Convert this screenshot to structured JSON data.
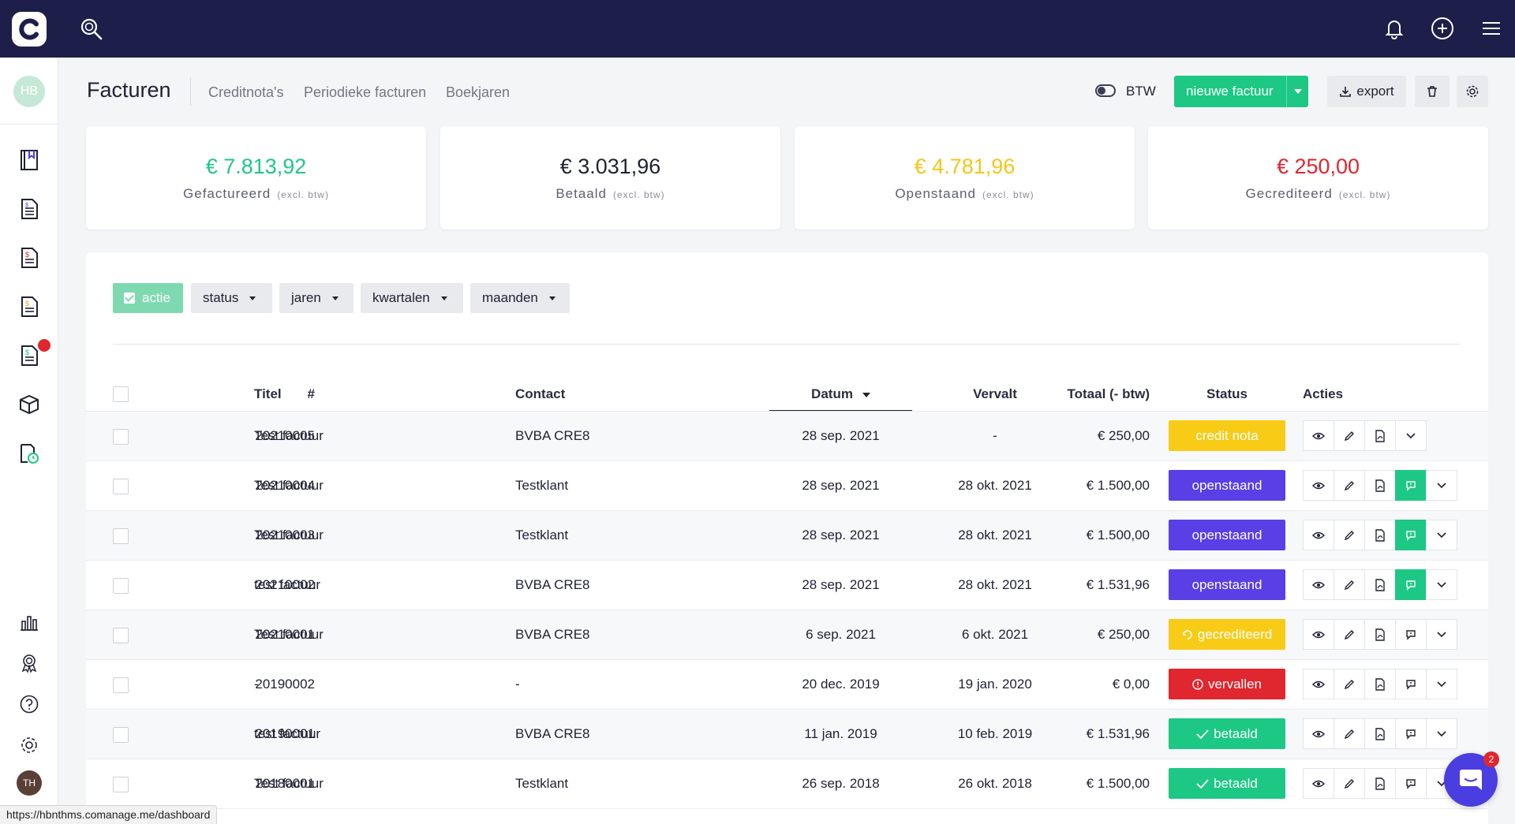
{
  "app": {
    "logo_letter": "C",
    "user_initials": "HB",
    "account_initials": "TH"
  },
  "header": {
    "title": "Facturen",
    "tabs": [
      "Creditnota's",
      "Periodieke facturen",
      "Boekjaren"
    ],
    "btw_label": "BTW",
    "new_invoice_label": "nieuwe factuur",
    "export_label": "export"
  },
  "stats": [
    {
      "amount": "€ 7.813,92",
      "label": "Gefactureerd",
      "note": "(excl. btw)",
      "color": "#1dc884"
    },
    {
      "amount": "€ 3.031,96",
      "label": "Betaald",
      "note": "(excl. btw)",
      "color": "#1f2133"
    },
    {
      "amount": "€ 4.781,96",
      "label": "Openstaand",
      "note": "(excl. btw)",
      "color": "#f5c617"
    },
    {
      "amount": "€ 250,00",
      "label": "Gecrediteerd",
      "note": "(excl. btw)",
      "color": "#e0262e"
    }
  ],
  "filters": {
    "actie": "actie",
    "status": "status",
    "jaren": "jaren",
    "kwartalen": "kwartalen",
    "maanden": "maanden"
  },
  "table": {
    "headers": {
      "num": "#",
      "titel": "Titel",
      "contact": "Contact",
      "datum": "Datum",
      "vervalt": "Vervalt",
      "totaal": "Totaal (- btw)",
      "status": "Status",
      "acties": "Acties"
    },
    "rows": [
      {
        "num": "20210005",
        "titel": "Test factuur",
        "contact": "BVBA CRE8",
        "datum": "28 sep. 2021",
        "vervalt": "-",
        "totaal": "€ 250,00",
        "status": "credit nota"
      },
      {
        "num": "20210004",
        "titel": "Test factuur",
        "contact": "Testklant",
        "datum": "28 sep. 2021",
        "vervalt": "28 okt. 2021",
        "totaal": "€ 1.500,00",
        "status": "openstaand"
      },
      {
        "num": "20210003",
        "titel": "Test factuur",
        "contact": "Testklant",
        "datum": "28 sep. 2021",
        "vervalt": "28 okt. 2021",
        "totaal": "€ 1.500,00",
        "status": "openstaand"
      },
      {
        "num": "20210002",
        "titel": "test factuur",
        "contact": "BVBA CRE8",
        "datum": "28 sep. 2021",
        "vervalt": "28 okt. 2021",
        "totaal": "€ 1.531,96",
        "status": "openstaand"
      },
      {
        "num": "20210001",
        "titel": "Test factuur",
        "contact": "BVBA CRE8",
        "datum": "6 sep. 2021",
        "vervalt": "6 okt. 2021",
        "totaal": "€ 250,00",
        "status": "gecrediteerd"
      },
      {
        "num": "20190002",
        "titel": "-",
        "contact": "-",
        "datum": "20 dec. 2019",
        "vervalt": "19 jan. 2020",
        "totaal": "€ 0,00",
        "status": "vervallen"
      },
      {
        "num": "20190001",
        "titel": "test factuur",
        "contact": "BVBA CRE8",
        "datum": "11 jan. 2019",
        "vervalt": "10 feb. 2019",
        "totaal": "€ 1.531,96",
        "status": "betaald"
      },
      {
        "num": "20180001",
        "titel": "Test factuur",
        "contact": "Testklant",
        "datum": "26 sep. 2018",
        "vervalt": "26 okt. 2018",
        "totaal": "€ 1.500,00",
        "status": "betaald"
      }
    ]
  },
  "status_colors": {
    "credit nota": "#f8cb17",
    "openstaand": "#5a3ee6",
    "gecrediteerd": "#f8cb17",
    "vervallen": "#e0262e",
    "betaald": "#1dc884"
  },
  "status_url": "https://hbnthms.comanage.me/dashboard",
  "chat": {
    "unread": "2"
  }
}
